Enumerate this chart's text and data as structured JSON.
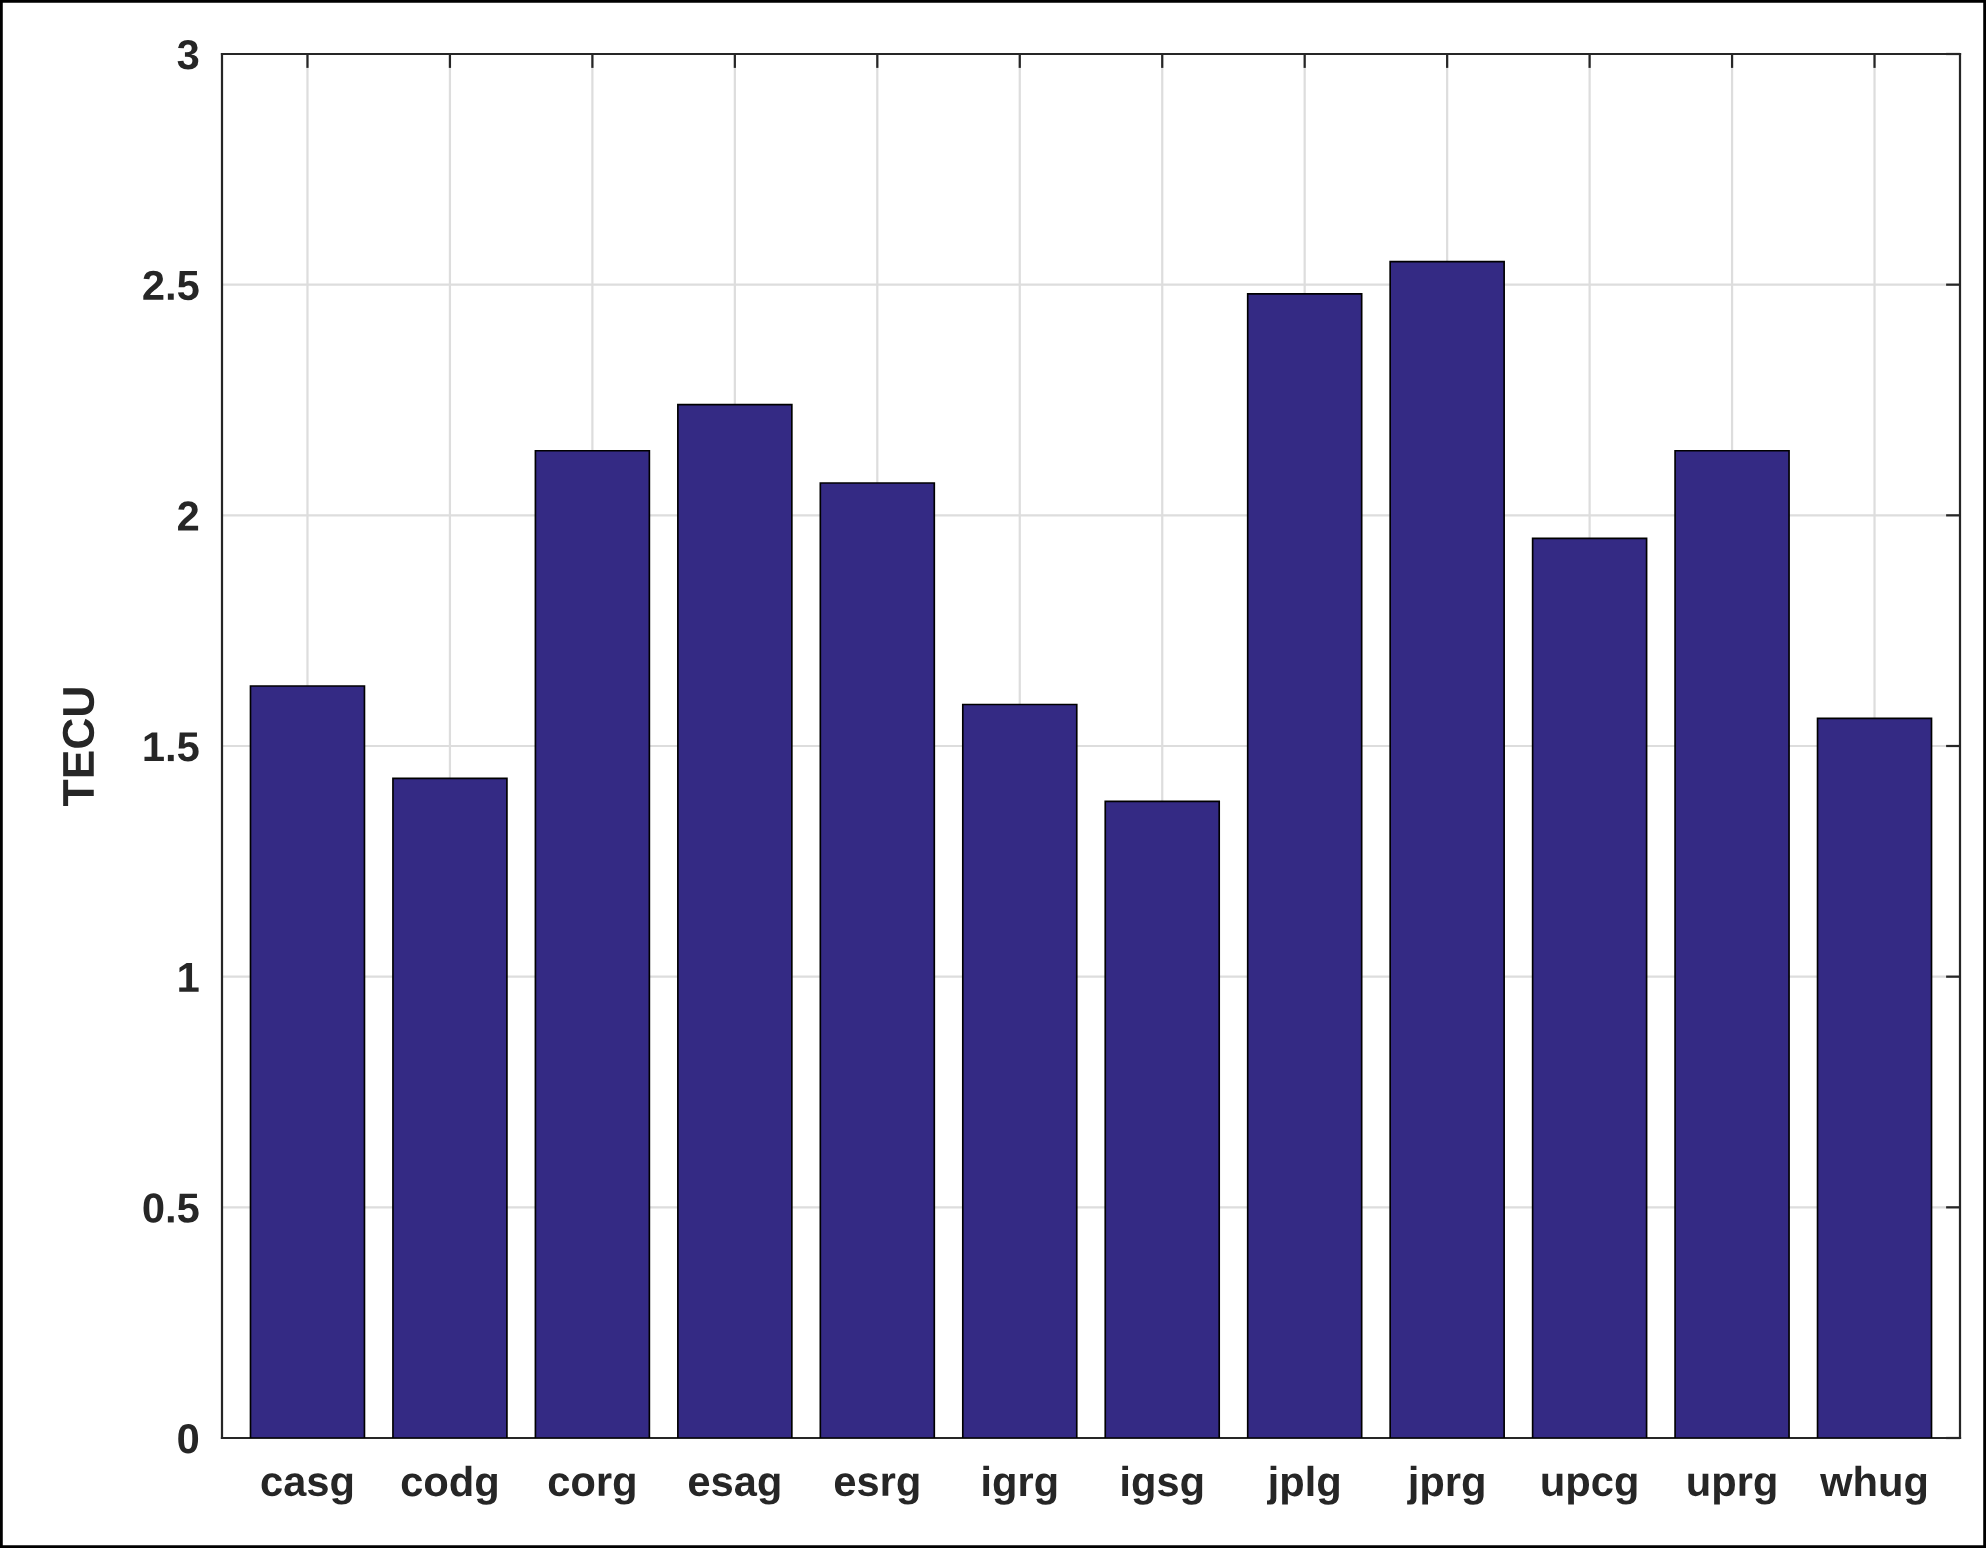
{
  "chart_data": {
    "type": "bar",
    "ylabel": "TECU",
    "categories": [
      "casg",
      "codg",
      "corg",
      "esag",
      "esrg",
      "igrg",
      "igsg",
      "jplg",
      "jprg",
      "upcg",
      "uprg",
      "whug"
    ],
    "values": [
      1.63,
      1.43,
      2.14,
      2.24,
      2.07,
      1.59,
      1.38,
      2.48,
      2.55,
      1.95,
      2.14,
      1.56
    ],
    "color": "#342a84",
    "ylim": [
      0,
      3
    ],
    "yticks": [
      0,
      0.5,
      1,
      1.5,
      2,
      2.5,
      3
    ],
    "grid": true
  }
}
